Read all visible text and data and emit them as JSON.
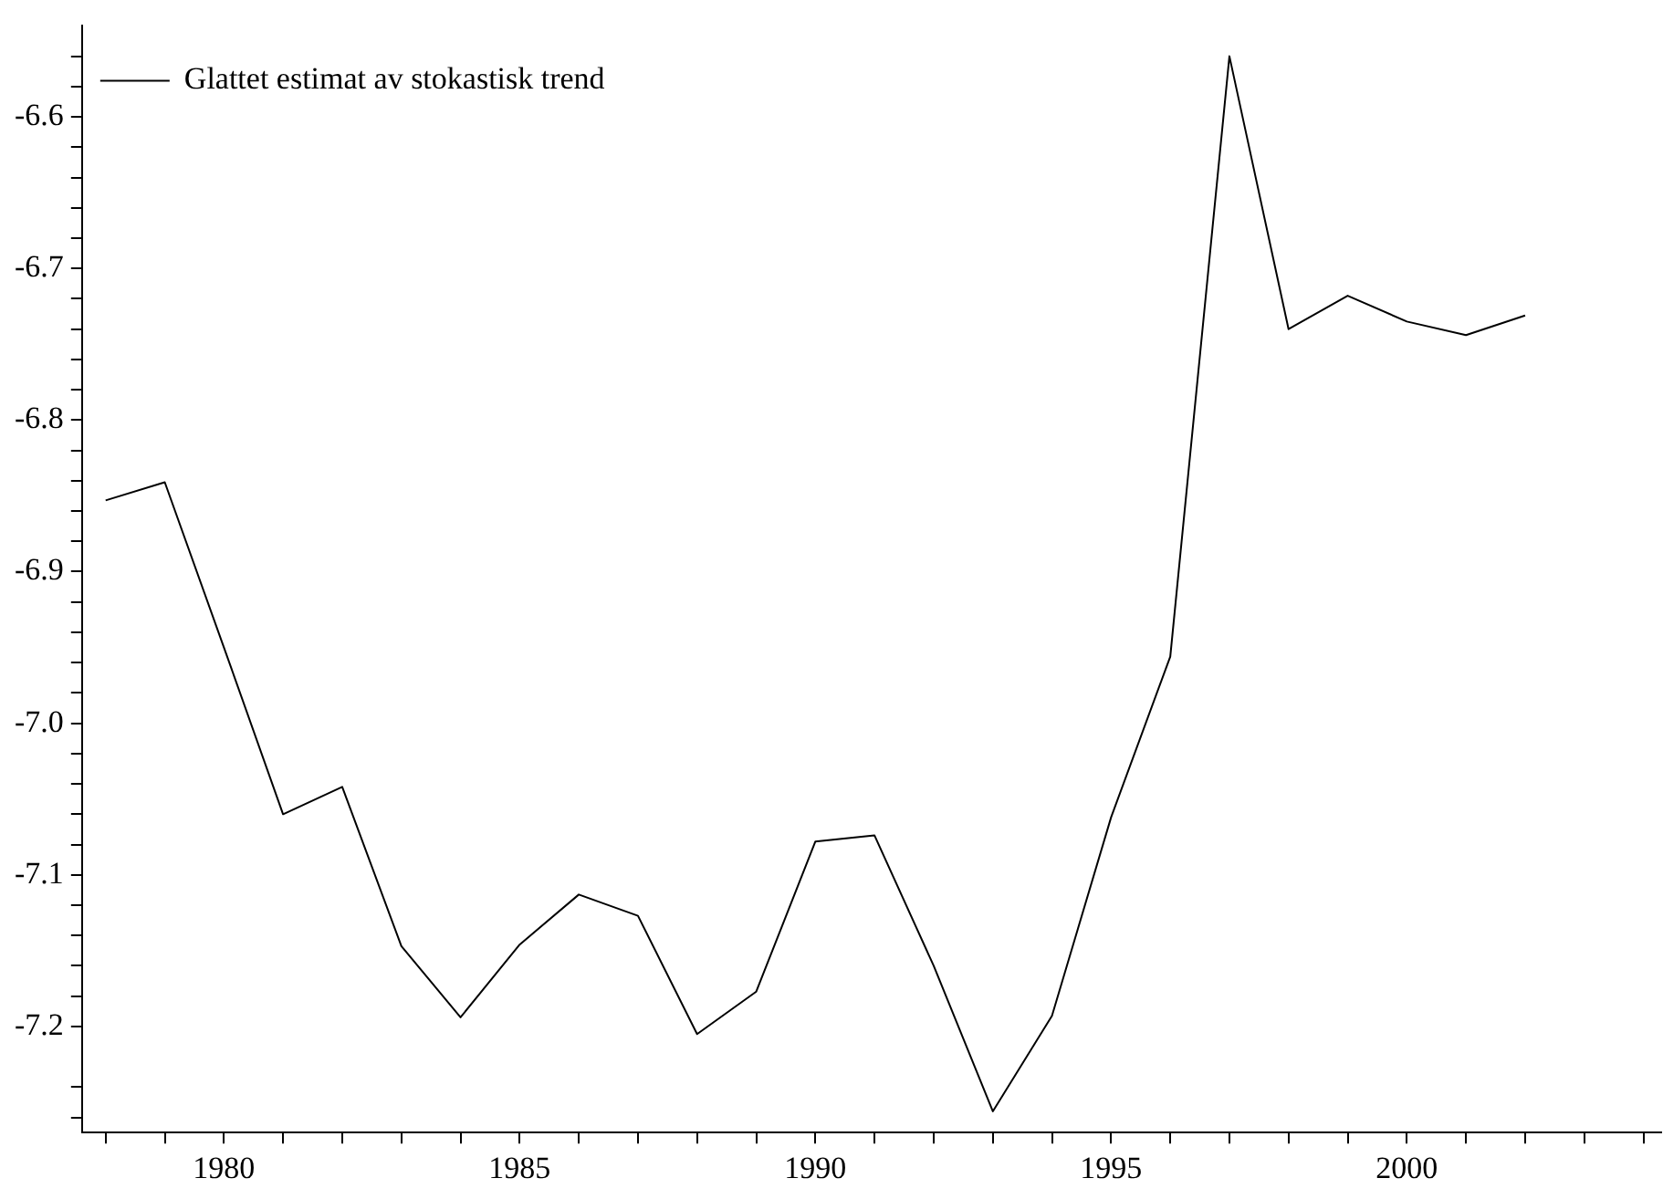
{
  "chart_data": {
    "type": "line",
    "x": [
      1978,
      1979,
      1980,
      1981,
      1982,
      1983,
      1984,
      1985,
      1986,
      1987,
      1988,
      1989,
      1990,
      1991,
      1992,
      1993,
      1994,
      1995,
      1996,
      1997,
      1998,
      1999,
      2000,
      2001,
      2002
    ],
    "series": [
      {
        "name": "Glattet estimat av stokastisk trend",
        "color": "#000000",
        "values": [
          -6.853,
          -6.841,
          -6.95,
          -7.06,
          -7.042,
          -7.147,
          -7.194,
          -7.146,
          -7.113,
          -7.127,
          -7.205,
          -7.177,
          -7.078,
          -7.074,
          -7.16,
          -7.256,
          -7.193,
          -7.062,
          -6.956,
          -6.56,
          -6.74,
          -6.718,
          -6.735,
          -6.744,
          -6.731
        ]
      }
    ],
    "xlim": [
      1977.6,
      2004.3
    ],
    "xticks": [
      {
        "value": 1978,
        "label": null
      },
      {
        "value": 1979,
        "label": null
      },
      1980,
      {
        "value": 1981,
        "label": null
      },
      {
        "value": 1982,
        "label": null
      },
      {
        "value": 1983,
        "label": null
      },
      {
        "value": 1984,
        "label": null
      },
      1985,
      {
        "value": 1986,
        "label": null
      },
      {
        "value": 1987,
        "label": null
      },
      {
        "value": 1988,
        "label": null
      },
      {
        "value": 1989,
        "label": null
      },
      1990,
      {
        "value": 1991,
        "label": null
      },
      {
        "value": 1992,
        "label": null
      },
      {
        "value": 1993,
        "label": null
      },
      {
        "value": 1994,
        "label": null
      },
      1995,
      {
        "value": 1996,
        "label": null
      },
      {
        "value": 1997,
        "label": null
      },
      {
        "value": 1998,
        "label": null
      },
      {
        "value": 1999,
        "label": null
      },
      2000,
      {
        "value": 2001,
        "label": null
      },
      {
        "value": 2002,
        "label": null
      },
      {
        "value": 2003,
        "label": null
      },
      {
        "value": 2004,
        "label": null
      }
    ],
    "ylim": [
      -7.27,
      -6.54
    ],
    "yticks": [
      {
        "value": -7.26,
        "label": null
      },
      {
        "value": -7.24,
        "label": null
      },
      {
        "value": -7.2,
        "label": "-7.2"
      },
      {
        "value": -7.18,
        "label": null
      },
      {
        "value": -7.16,
        "label": null
      },
      {
        "value": -7.14,
        "label": null
      },
      {
        "value": -7.12,
        "label": null
      },
      {
        "value": -7.1,
        "label": "-7.1"
      },
      {
        "value": -7.08,
        "label": null
      },
      {
        "value": -7.06,
        "label": null
      },
      {
        "value": -7.04,
        "label": null
      },
      {
        "value": -7.02,
        "label": null
      },
      {
        "value": -7.0,
        "label": "-7.0"
      },
      {
        "value": -6.98,
        "label": null
      },
      {
        "value": -6.96,
        "label": null
      },
      {
        "value": -6.94,
        "label": null
      },
      {
        "value": -6.92,
        "label": null
      },
      {
        "value": -6.9,
        "label": "-6.9"
      },
      {
        "value": -6.88,
        "label": null
      },
      {
        "value": -6.86,
        "label": null
      },
      {
        "value": -6.84,
        "label": null
      },
      {
        "value": -6.82,
        "label": null
      },
      {
        "value": -6.8,
        "label": "-6.8"
      },
      {
        "value": -6.78,
        "label": null
      },
      {
        "value": -6.76,
        "label": null
      },
      {
        "value": -6.74,
        "label": null
      },
      {
        "value": -6.72,
        "label": null
      },
      {
        "value": -6.7,
        "label": "-6.7"
      },
      {
        "value": -6.68,
        "label": null
      },
      {
        "value": -6.66,
        "label": null
      },
      {
        "value": -6.64,
        "label": null
      },
      {
        "value": -6.62,
        "label": null
      },
      {
        "value": -6.6,
        "label": "-6.6"
      },
      {
        "value": -6.58,
        "label": null
      },
      {
        "value": -6.56,
        "label": null
      }
    ],
    "grid": false,
    "legend": "top left",
    "marker": "none",
    "line_style": "solid"
  }
}
